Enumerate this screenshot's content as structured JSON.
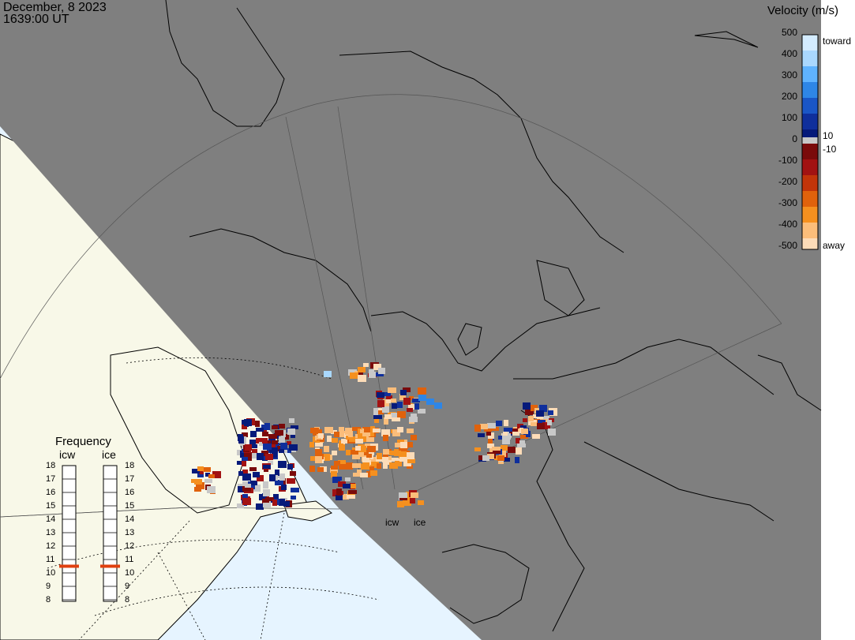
{
  "header": {
    "date": "December, 8 2023",
    "time": "1639:00 UT"
  },
  "legend": {
    "title": "Velocity (m/s)",
    "ticks": [
      "500",
      "400",
      "300",
      "200",
      "100",
      "0",
      "-100",
      "-200",
      "-300",
      "-400",
      "-500"
    ],
    "toward_label": "toward",
    "away_label": "away",
    "threshold_positive": "10",
    "threshold_negative": "-10",
    "colors": {
      "toward": [
        "#d4ecff",
        "#a9d8ff",
        "#5fb3ff",
        "#2e86e6",
        "#1a56c6",
        "#0f2f9c",
        "#061a7a"
      ],
      "away": [
        "#7a0a0a",
        "#a21212",
        "#c2340a",
        "#e0620c",
        "#f5901f",
        "#fbbd7a",
        "#fddcb8"
      ],
      "neutral": "#c8c8c8"
    }
  },
  "frequency": {
    "title": "Frequency",
    "radar_a": "icw",
    "radar_b": "ice",
    "ticks": [
      "18",
      "17",
      "16",
      "15",
      "14",
      "13",
      "12",
      "11",
      "10",
      "9",
      "8"
    ],
    "icw_value": 10.5,
    "ice_value": 10.5,
    "marker_color": "#e04010"
  },
  "radar_labels": {
    "a": "icw",
    "b": "ice"
  },
  "colors": {
    "night": "#7f7f7f",
    "land_day": "#f8f8e8",
    "ocean_day": "#e6f4ff",
    "coast": "#000000"
  }
}
